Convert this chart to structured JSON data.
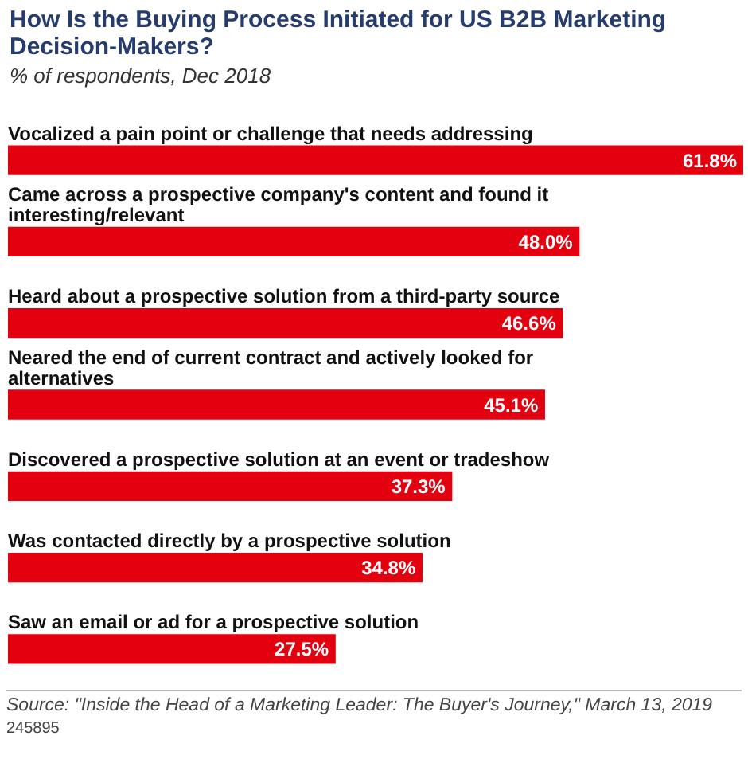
{
  "chart_data": {
    "type": "bar",
    "orientation": "horizontal",
    "title": "How Is the Buying Process Initiated for US B2B Marketing Decision-Makers?",
    "subtitle": "% of respondents, Dec 2018",
    "categories": [
      "Vocalized a pain point or challenge that needs addressing",
      "Came across a prospective company's content and found it interesting/relevant",
      "Heard about a prospective solution from a third-party source",
      "Neared the end of current contract and actively looked for alternatives",
      "Discovered a prospective solution at an event or tradeshow",
      "Was contacted directly by a prospective solution",
      "Saw an email or ad for a prospective solution"
    ],
    "values": [
      61.8,
      48.0,
      46.6,
      45.1,
      37.3,
      34.8,
      27.5
    ],
    "value_labels": [
      "61.8%",
      "48.0%",
      "46.6%",
      "45.1%",
      "37.3%",
      "34.8%",
      "27.5%"
    ],
    "color": "#e3000f",
    "tick_labels": false,
    "annotations": [
      "Source: \"Inside the Head of a Marketing Leader: The Buyer's Journey,\" March 13, 2019",
      "245895"
    ]
  }
}
